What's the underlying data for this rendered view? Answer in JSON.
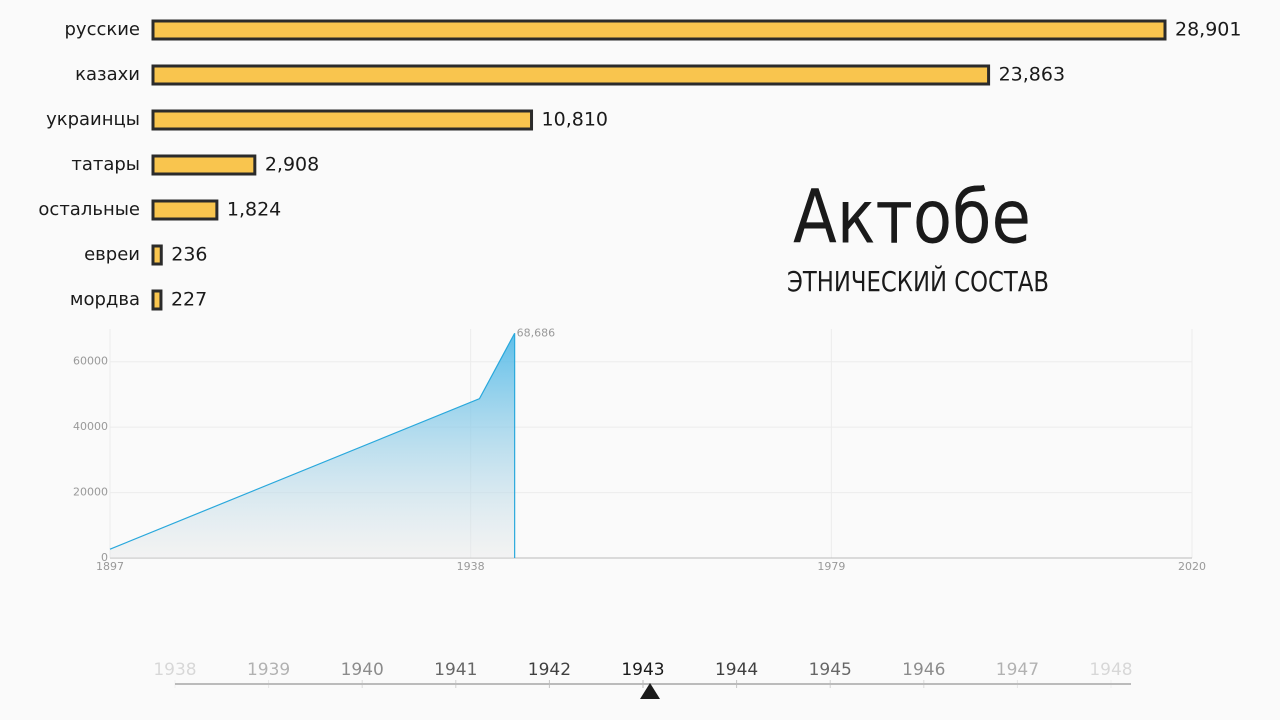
{
  "chart_data": [
    {
      "type": "hbar",
      "title": "Актобе",
      "subtitle": "ЭТНИЧЕСКИЙ СОСТАВ",
      "categories": [
        "русские",
        "казахи",
        "украинцы",
        "татары",
        "остальные",
        "евреи",
        "мордва"
      ],
      "values": [
        28901,
        23863,
        10810,
        2908,
        1824,
        236,
        227
      ],
      "value_labels": [
        "28,901",
        "23,863",
        "10,810",
        "2,908",
        "1,824",
        "236",
        "227"
      ],
      "xlim": [
        0,
        28901
      ],
      "color": "#f9c54e"
    },
    {
      "type": "area",
      "x": [
        1897,
        1939,
        1943
      ],
      "values": [
        2700,
        48700,
        68686
      ],
      "value_labels": [
        null,
        null,
        "68,686"
      ],
      "xlim": [
        1897,
        2020
      ],
      "xticks": [
        1897,
        1938,
        1979,
        2020
      ],
      "ylim": [
        0,
        70000
      ],
      "yticks": [
        0,
        20000,
        40000,
        60000
      ],
      "grid": true,
      "color": "#29a8dc"
    },
    {
      "type": "timeline",
      "categories": [
        1938,
        1939,
        1940,
        1941,
        1942,
        1943,
        1944,
        1945,
        1946,
        1947,
        1948
      ],
      "selected": 1943
    }
  ]
}
